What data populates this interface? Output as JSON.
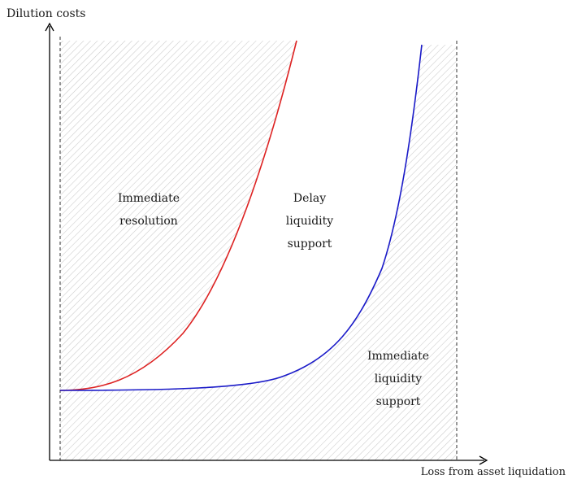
{
  "axes": {
    "y_label": "Dilution costs",
    "x_label": "Loss from asset liquidation"
  },
  "regions": {
    "immediate_resolution": [
      "Immediate",
      "resolution"
    ],
    "delay_liquidity_support": [
      "Delay",
      "liquidity",
      "support"
    ],
    "immediate_liquidity_support": [
      "Immediate",
      "liquidity",
      "support"
    ]
  },
  "curves": {
    "upper_boundary_color": "#dd2222",
    "lower_boundary_color": "#1a1ac8"
  },
  "hatch_color": "#c9c9c9"
}
